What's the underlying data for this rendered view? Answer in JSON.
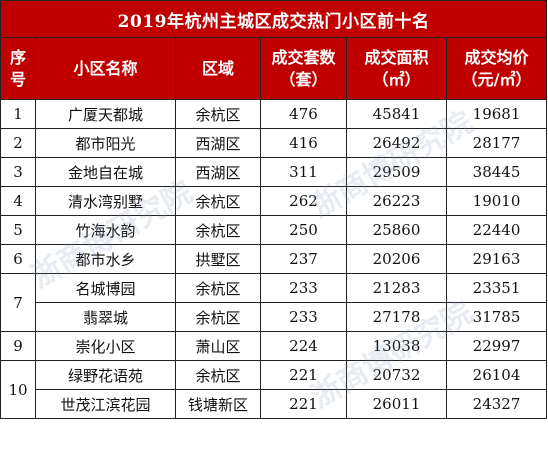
{
  "title": "2019年杭州主城区成交热门小区前十名",
  "headers": {
    "rank_line1": "序",
    "rank_line2": "号",
    "name": "小区名称",
    "district": "区域",
    "units_line1": "成交套数",
    "units_line2": "（套）",
    "area_line1": "成交面积",
    "area_line2": "（㎡）",
    "price_line1": "成交均价",
    "price_line2": "（元/㎡）"
  },
  "rows": [
    {
      "rank": "1",
      "name": "广厦天都城",
      "district": "余杭区",
      "units": "476",
      "area": "45841",
      "price": "19681"
    },
    {
      "rank": "2",
      "name": "都市阳光",
      "district": "西湖区",
      "units": "416",
      "area": "26492",
      "price": "28177"
    },
    {
      "rank": "3",
      "name": "金地自在城",
      "district": "西湖区",
      "units": "311",
      "area": "29509",
      "price": "38445"
    },
    {
      "rank": "4",
      "name": "清水湾别墅",
      "district": "余杭区",
      "units": "262",
      "area": "26223",
      "price": "19010"
    },
    {
      "rank": "5",
      "name": "竹海水韵",
      "district": "余杭区",
      "units": "250",
      "area": "25860",
      "price": "22440"
    },
    {
      "rank": "6",
      "name": "都市水乡",
      "district": "拱墅区",
      "units": "237",
      "area": "20206",
      "price": "29163"
    },
    {
      "rank": "7",
      "name": "名城博园",
      "district": "余杭区",
      "units": "233",
      "area": "21283",
      "price": "23351"
    },
    {
      "rank": "",
      "name": "翡翠城",
      "district": "余杭区",
      "units": "233",
      "area": "27178",
      "price": "31785"
    },
    {
      "rank": "9",
      "name": "崇化小区",
      "district": "萧山区",
      "units": "224",
      "area": "13038",
      "price": "22997"
    },
    {
      "rank": "10",
      "name": "绿野花语苑",
      "district": "余杭区",
      "units": "221",
      "area": "20732",
      "price": "26104"
    },
    {
      "rank": "",
      "name": "世茂江滨花园",
      "district": "钱塘新区",
      "units": "221",
      "area": "26011",
      "price": "24327"
    }
  ],
  "watermark": "浙商博研究院"
}
